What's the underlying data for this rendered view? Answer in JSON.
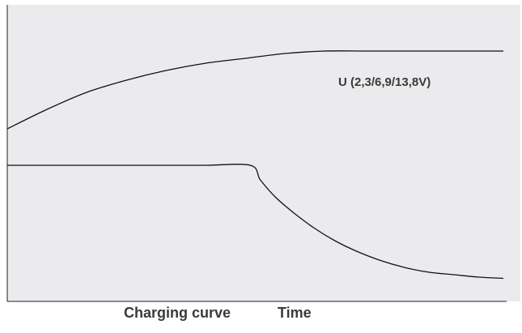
{
  "chart_data": {
    "type": "line",
    "title": "",
    "xlabel": "Time",
    "ylabel": "",
    "grid": false,
    "series": [
      {
        "name": "U (2,3/6,9/13,8V)",
        "color": "#111111",
        "x": [
          0,
          8,
          16,
          24,
          32,
          40,
          48,
          56,
          64,
          72,
          80,
          90,
          100
        ],
        "y": [
          0.68,
          0.76,
          0.83,
          0.88,
          0.92,
          0.95,
          0.97,
          0.99,
          1.0,
          1.0,
          1.0,
          1.0,
          1.0
        ]
      },
      {
        "name": "",
        "color": "#111111",
        "x": [
          0,
          10,
          20,
          30,
          40,
          49,
          51,
          54,
          58,
          62,
          66,
          70,
          75,
          80,
          85,
          90,
          95,
          100
        ],
        "y": [
          0.53,
          0.53,
          0.53,
          0.53,
          0.53,
          0.53,
          0.47,
          0.4,
          0.33,
          0.27,
          0.22,
          0.18,
          0.14,
          0.11,
          0.09,
          0.08,
          0.07,
          0.065
        ]
      }
    ],
    "annotation": "U (2,3/6,9/13,8V)",
    "captions": [
      "Charging curve",
      "Time"
    ]
  },
  "colors": {
    "plot_background": "#ebebed",
    "axis": "#222222",
    "line": "#111111",
    "text": "#3a3a3a"
  }
}
